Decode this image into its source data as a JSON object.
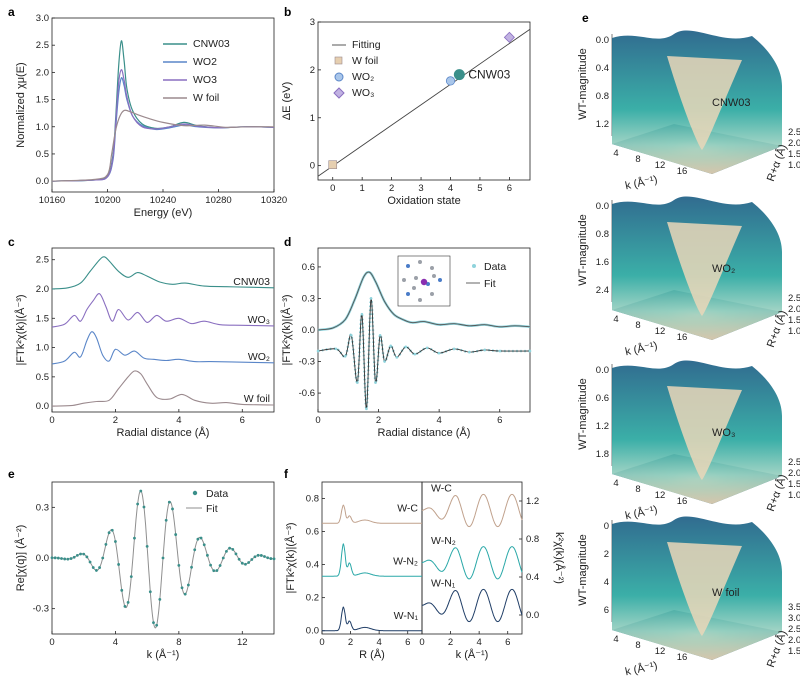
{
  "figure": {
    "panels": [
      "a",
      "b",
      "c",
      "d",
      "e",
      "f",
      "e"
    ],
    "colors": {
      "CNW03": "#3a8f8a",
      "WO2": "#5a86c8",
      "WO3": "#8a6fc0",
      "Wfoil": "#9b8a8e",
      "fit_gray": "#8f8f8f",
      "data_cyan": "#8fd3dc",
      "wc": "#c0a18c",
      "wn2": "#2aa8a8",
      "wn1": "#1f3d66",
      "surface_top": "#1f5f86",
      "surface_mid": "#2aa8a0",
      "surface_bottom": "#e6cfb0"
    }
  },
  "chart_data": [
    {
      "id": "a",
      "type": "line",
      "xlabel": "Energy (eV)",
      "ylabel": "Normalized χμ(E)",
      "xlim": [
        10160,
        10320
      ],
      "ylim": [
        -0.2,
        3.0
      ],
      "xticks": [
        10160,
        10200,
        10240,
        10280,
        10320
      ],
      "yticks": [
        "0.0",
        "0.5",
        "1.0",
        "1.5",
        "2.0",
        "2.5",
        "3.0"
      ],
      "legend_position": "top-right",
      "series": [
        {
          "name": "CNW03",
          "x": [
            10160,
            10190,
            10200,
            10204,
            10206,
            10208,
            10210,
            10212,
            10214,
            10218,
            10225,
            10235,
            10245,
            10255,
            10265,
            10280,
            10300,
            10320
          ],
          "y": [
            0.0,
            0.02,
            0.1,
            0.5,
            1.2,
            2.1,
            2.58,
            2.2,
            1.7,
            1.3,
            1.05,
            0.97,
            1.0,
            1.08,
            1.02,
            0.98,
            1.0,
            0.99
          ]
        },
        {
          "name": "WO2",
          "x": [
            10160,
            10190,
            10200,
            10204,
            10206,
            10208,
            10210,
            10212,
            10214,
            10218,
            10225,
            10235,
            10245,
            10255,
            10265,
            10280,
            10300,
            10320
          ],
          "y": [
            0.0,
            0.02,
            0.08,
            0.4,
            1.0,
            1.6,
            1.9,
            1.75,
            1.5,
            1.2,
            1.02,
            0.95,
            0.98,
            1.03,
            1.0,
            0.98,
            1.0,
            0.99
          ]
        },
        {
          "name": "WO3",
          "x": [
            10160,
            10190,
            10200,
            10204,
            10206,
            10208,
            10210,
            10212,
            10214,
            10218,
            10225,
            10235,
            10245,
            10255,
            10265,
            10280,
            10300,
            10320
          ],
          "y": [
            0.0,
            0.02,
            0.08,
            0.45,
            1.1,
            1.8,
            2.05,
            1.85,
            1.55,
            1.2,
            1.0,
            0.96,
            1.0,
            1.05,
            1.01,
            0.98,
            1.0,
            0.99
          ]
        },
        {
          "name": "W foil",
          "x": [
            10160,
            10190,
            10200,
            10203,
            10206,
            10209,
            10212,
            10216,
            10222,
            10230,
            10240,
            10255,
            10270,
            10285,
            10300,
            10320
          ],
          "y": [
            0.0,
            0.03,
            0.12,
            0.5,
            0.95,
            1.2,
            1.3,
            1.28,
            1.22,
            1.15,
            1.08,
            1.02,
            1.03,
            0.99,
            1.0,
            1.0
          ]
        }
      ]
    },
    {
      "id": "b",
      "type": "scatter",
      "xlabel": "Oxidation state",
      "ylabel": "ΔE (eV)",
      "xlim": [
        -0.5,
        6.7
      ],
      "ylim": [
        -0.3,
        3.0
      ],
      "xticks": [
        0,
        1,
        2,
        3,
        4,
        5,
        6
      ],
      "yticks": [
        0,
        1,
        2,
        3
      ],
      "legend_position": "top-left",
      "fit_line": {
        "name": "Fitting",
        "x": [
          -0.5,
          6.7
        ],
        "y": [
          -0.22,
          2.85
        ]
      },
      "points": [
        {
          "name": "W foil",
          "x": 0,
          "y": 0.02,
          "marker": "square"
        },
        {
          "name": "WO2",
          "x": 4,
          "y": 1.77,
          "marker": "circle"
        },
        {
          "name": "WO3",
          "x": 6,
          "y": 2.68,
          "marker": "diamond"
        },
        {
          "name": "CNW03",
          "x": 4.3,
          "y": 1.9,
          "marker": "big-circle",
          "label": "CNW03"
        }
      ]
    },
    {
      "id": "c",
      "type": "line",
      "xlabel": "Radial distance (Å)",
      "ylabel": "|FTk²χ(k)|(Å⁻³)",
      "xlim": [
        0,
        7
      ],
      "ylim": [
        -0.1,
        2.7
      ],
      "xticks": [
        0,
        2,
        4,
        6
      ],
      "yticks": [
        "0.0",
        "0.5",
        "1.0",
        "1.5",
        "2.0",
        "2.5"
      ],
      "series": [
        {
          "name": "CNW03",
          "offset": 2.0,
          "x": [
            0,
            0.5,
            0.9,
            1.2,
            1.5,
            1.65,
            1.8,
            2.1,
            2.4,
            2.7,
            3.0,
            3.4,
            3.8,
            4.2,
            4.8,
            5.5,
            6.2,
            7
          ],
          "y": [
            0,
            0.02,
            0.1,
            0.3,
            0.5,
            0.55,
            0.48,
            0.3,
            0.2,
            0.28,
            0.22,
            0.12,
            0.08,
            0.1,
            0.05,
            0.04,
            0.03,
            0.02
          ],
          "label": "CNW03"
        },
        {
          "name": "WO3",
          "offset": 1.35,
          "x": [
            0,
            0.4,
            0.7,
            0.9,
            1.1,
            1.3,
            1.5,
            1.7,
            1.9,
            2.1,
            2.4,
            2.7,
            3.0,
            3.3,
            3.6,
            4.0,
            4.4,
            4.8,
            5.3,
            6,
            7
          ],
          "y": [
            0,
            0.05,
            0.2,
            0.1,
            0.3,
            0.45,
            0.57,
            0.35,
            0.1,
            0.3,
            0.12,
            0.25,
            0.08,
            0.2,
            0.1,
            0.15,
            0.06,
            0.1,
            0.04,
            0.03,
            0.02
          ],
          "label": "WO₃"
        },
        {
          "name": "WO2",
          "offset": 0.72,
          "x": [
            0,
            0.4,
            0.7,
            0.9,
            1.1,
            1.25,
            1.4,
            1.6,
            1.8,
            2.0,
            2.3,
            2.6,
            2.9,
            3.2,
            3.6,
            4.0,
            4.5,
            5,
            6,
            7
          ],
          "y": [
            0,
            0.05,
            0.2,
            0.12,
            0.4,
            0.55,
            0.45,
            0.15,
            0.05,
            0.25,
            0.15,
            0.22,
            0.1,
            0.08,
            0.06,
            0.08,
            0.04,
            0.04,
            0.03,
            0.02
          ],
          "label": "WO₂"
        },
        {
          "name": "W foil",
          "offset": 0.0,
          "x": [
            0,
            0.6,
            1.0,
            1.4,
            1.8,
            2.1,
            2.4,
            2.6,
            2.8,
            3.0,
            3.3,
            3.7,
            4.1,
            4.5,
            5,
            5.5,
            6,
            7
          ],
          "y": [
            0,
            0.01,
            0.05,
            0.08,
            0.1,
            0.3,
            0.5,
            0.6,
            0.55,
            0.38,
            0.15,
            0.12,
            0.2,
            0.1,
            0.05,
            0.06,
            0.03,
            0.02
          ],
          "label": "W foil"
        }
      ]
    },
    {
      "id": "d",
      "type": "line",
      "xlabel": "Radial distance (Å)",
      "ylabel": "|FTk²χ(k)|(Å⁻³)",
      "xlim": [
        0,
        7
      ],
      "ylim": [
        -0.78,
        0.78
      ],
      "xticks": [
        0,
        2,
        4,
        6
      ],
      "yticks": [
        "-0.6",
        "-0.3",
        "0.0",
        "0.3",
        "0.6"
      ],
      "legend": [
        "Data",
        "Fit"
      ],
      "magnitude_offset": 0.0,
      "real_offset": -0.2,
      "magnitude": {
        "x": [
          0,
          0.5,
          0.9,
          1.2,
          1.5,
          1.7,
          1.9,
          2.2,
          2.5,
          2.8,
          3.1,
          3.5,
          4,
          4.5,
          5,
          5.5,
          6,
          6.5,
          7
        ],
        "y": [
          0,
          0.02,
          0.1,
          0.28,
          0.5,
          0.55,
          0.46,
          0.27,
          0.15,
          0.1,
          0.07,
          0.08,
          0.05,
          0.06,
          0.04,
          0.05,
          0.03,
          0.04,
          0.03
        ]
      },
      "real": {
        "x": [
          0,
          0.6,
          0.9,
          1.1,
          1.3,
          1.45,
          1.6,
          1.75,
          1.9,
          2.05,
          2.2,
          2.4,
          2.6,
          2.9,
          3.2,
          3.6,
          4.0,
          4.5,
          5,
          5.5,
          6,
          7
        ],
        "y": [
          0,
          0.02,
          -0.05,
          0.15,
          -0.3,
          0.35,
          -0.55,
          0.5,
          -0.3,
          0.15,
          -0.1,
          0.05,
          -0.06,
          0.04,
          -0.03,
          0.03,
          -0.02,
          0.02,
          -0.01,
          0.01,
          0,
          0
        ]
      }
    },
    {
      "id": "e",
      "type": "scatter",
      "xlabel": "k (Å⁻¹)",
      "ylabel": "Re[χ(q)] (Å⁻²)",
      "xlim": [
        0,
        14
      ],
      "ylim": [
        -0.45,
        0.45
      ],
      "xticks": [
        0,
        4,
        8,
        12
      ],
      "yticks": [
        "-0.3",
        "0.0",
        "0.3"
      ],
      "legend": [
        "Data",
        "Fit"
      ]
    },
    {
      "id": "f",
      "type": "line",
      "left": {
        "xlabel": "R (Å)",
        "ylabel": "|FTk²χ(k)|(Å⁻³)",
        "xlim": [
          0,
          7
        ],
        "ylim": [
          -0.02,
          0.9
        ],
        "xticks": [
          0,
          2,
          4,
          6
        ],
        "yticks": [
          "0.0",
          "0.2",
          "0.4",
          "0.6",
          "0.8"
        ],
        "series": [
          {
            "name": "W-C",
            "offset": 0.65,
            "label": "W-C"
          },
          {
            "name": "W-N2",
            "offset": 0.33,
            "label": "W-N₂"
          },
          {
            "name": "W-N1",
            "offset": 0.0,
            "label": "W-N₁"
          }
        ]
      },
      "right": {
        "xlabel": "k (Å⁻¹)",
        "ylabel": "k²χ(k)(Å⁻²)",
        "xlim": [
          0,
          7
        ],
        "ylim": [
          -0.2,
          1.4
        ],
        "xticks": [
          0,
          2,
          4,
          6
        ],
        "yticks": [
          "0.0",
          "0.4",
          "0.8",
          "1.2"
        ],
        "series": [
          {
            "name": "W-C",
            "offset": 1.1,
            "label": "W-C"
          },
          {
            "name": "W-N2",
            "offset": 0.55,
            "label": "W-N₂"
          },
          {
            "name": "W-N1",
            "offset": 0.1,
            "label": "W-N₁"
          }
        ]
      }
    },
    {
      "id": "e-wt",
      "type": "heatmap",
      "zlabel": "WT-magnitude",
      "xlabel": "k (Å⁻¹)",
      "ylabel": "R+α (Å)",
      "surfaces": [
        {
          "name": "CNW03",
          "zticks": [
            "0.0",
            "0.4",
            "0.8",
            "1.2"
          ],
          "kticks": [
            "4",
            "8",
            "12",
            "16"
          ],
          "rticks": [
            "1.0",
            "1.5",
            "2.0",
            "2.5"
          ]
        },
        {
          "name": "WO₂",
          "zticks": [
            "0.0",
            "0.8",
            "1.6",
            "2.4"
          ],
          "kticks": [
            "4",
            "8",
            "12",
            "16"
          ],
          "rticks": [
            "1.0",
            "1.5",
            "2.0",
            "2.5"
          ]
        },
        {
          "name": "WO₃",
          "zticks": [
            "0.0",
            "0.6",
            "1.2",
            "1.8"
          ],
          "kticks": [
            "4",
            "8",
            "12",
            "16"
          ],
          "rticks": [
            "1.0",
            "1.5",
            "2.0",
            "2.5"
          ]
        },
        {
          "name": "W foil",
          "zticks": [
            "0",
            "2",
            "4",
            "6"
          ],
          "kticks": [
            "4",
            "8",
            "12",
            "16"
          ],
          "rticks": [
            "1.5",
            "2.0",
            "2.5",
            "3.0",
            "3.5"
          ]
        }
      ]
    }
  ]
}
